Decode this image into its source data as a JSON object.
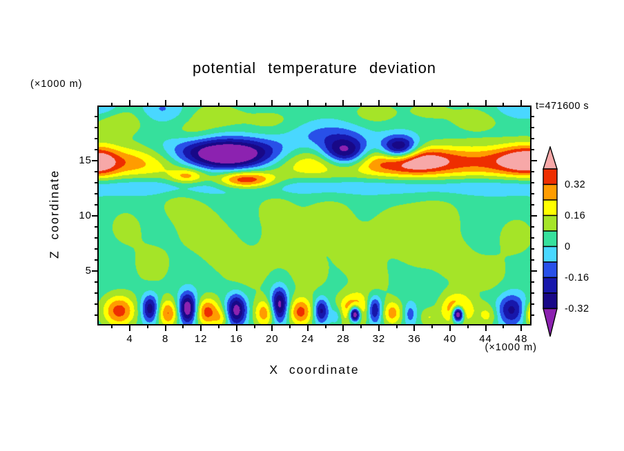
{
  "title": "potential temperature deviation",
  "timestamp_label": "t=471600 s",
  "y_unit_label": "(×1000 m)",
  "x_unit_label": "(×1000 m)",
  "x_axis_label": "X coordinate",
  "y_axis_label": "Z coordinate",
  "chart_data": {
    "type": "filled_contour",
    "title": "potential temperature deviation",
    "time_label": "t=471600 s",
    "x": {
      "label": "X coordinate",
      "unit": "(×1000 m)",
      "range": [
        0.5,
        49.0
      ],
      "major_ticks": [
        4,
        8,
        12,
        16,
        20,
        24,
        28,
        32,
        36,
        40,
        44,
        48
      ],
      "minor_tick_step": 2
    },
    "z": {
      "label": "Z coordinate",
      "unit": "(×1000 m)",
      "range": [
        0.2,
        19.9
      ],
      "major_ticks": [
        5,
        10,
        15
      ],
      "minor_tick_step": 1
    },
    "levels": {
      "thresholds": [
        0.4,
        0.32,
        0.24,
        0.16,
        0.08,
        0,
        -0.08,
        -0.16,
        -0.24,
        -0.32
      ],
      "colors": [
        "#F7A8A8",
        "#EE2E00",
        "#FF9C00",
        "#FFFF00",
        "#A5E428",
        "#36E09C",
        "#49D7FF",
        "#2850E8",
        "#1717AB",
        "#180887",
        "#8C22B0"
      ],
      "color_names": [
        "pink",
        "red",
        "orange",
        "yellow",
        "green-yellow",
        "green",
        "cyan",
        "blue",
        "navy",
        "dark-navy",
        "purple"
      ]
    },
    "colorbar": {
      "labels": [
        {
          "text": "0.32",
          "boundary": 1
        },
        {
          "text": "0.16",
          "boundary": 3
        },
        {
          "text": "0",
          "boundary": 5
        },
        {
          "text": "-0.16",
          "boundary": 7
        },
        {
          "text": "-0.32",
          "boundary": 9
        }
      ]
    },
    "field_model": "sum_of_gaussians",
    "background_value": 0.03,
    "field_features": [
      {
        "x": 24.75,
        "z": 14.9,
        "sx": 400,
        "sz": 1.05,
        "a": 0.3
      },
      {
        "x": 24.75,
        "z": 12.7,
        "sx": 400,
        "sz": 0.62,
        "a": -0.11
      },
      {
        "x": 0.5,
        "z": 14.9,
        "sx": 1.4,
        "sz": 1.0,
        "a": 0.22
      },
      {
        "x": 36,
        "z": 15.0,
        "sx": 2.6,
        "sz": 0.85,
        "a": 0.22
      },
      {
        "x": 48.6,
        "z": 15.1,
        "sx": 2.2,
        "sz": 1.0,
        "a": 0.24
      },
      {
        "x": 17,
        "z": 13.25,
        "sx": 2.3,
        "sz": 0.55,
        "a": 0.4
      },
      {
        "x": 10.5,
        "z": 13.6,
        "sx": 1.4,
        "sz": 0.5,
        "a": 0.22
      },
      {
        "x": 15,
        "z": 15.4,
        "sx": 4.6,
        "sz": 1.05,
        "a": -0.78
      },
      {
        "x": 28.2,
        "z": 15.7,
        "sx": 1.9,
        "sz": 0.95,
        "a": -0.52
      },
      {
        "x": 34.3,
        "z": 16.1,
        "sx": 1.5,
        "sz": 0.8,
        "a": -0.5
      },
      {
        "x": 2.5,
        "z": 18.6,
        "sx": 2.2,
        "sz": 1.0,
        "a": 0.13
      },
      {
        "x": 0.8,
        "z": 19.9,
        "sx": 1.6,
        "sz": 0.8,
        "a": -0.14
      },
      {
        "x": 7.6,
        "z": 19.7,
        "sx": 1.7,
        "sz": 0.8,
        "a": -0.12
      },
      {
        "x": 13.5,
        "z": 19.0,
        "sx": 2.2,
        "sz": 0.9,
        "a": 0.1
      },
      {
        "x": 20,
        "z": 18.4,
        "sx": 2.6,
        "sz": 1.0,
        "a": 0.08
      },
      {
        "x": 25.8,
        "z": 17.4,
        "sx": 3.2,
        "sz": 0.9,
        "a": -0.13
      },
      {
        "x": 31.5,
        "z": 19.3,
        "sx": 2.0,
        "sz": 0.8,
        "a": 0.09
      },
      {
        "x": 43,
        "z": 18.8,
        "sx": 2.4,
        "sz": 0.9,
        "a": 0.09
      },
      {
        "x": 47.5,
        "z": 19.8,
        "sx": 2.0,
        "sz": 0.7,
        "a": -0.11
      },
      {
        "x": 11,
        "z": 17.6,
        "sx": 1.8,
        "sz": 0.7,
        "a": 0.08
      },
      {
        "x": 37.5,
        "z": 19.6,
        "sx": 1.8,
        "sz": 0.7,
        "a": 0.07
      },
      {
        "x": 6.5,
        "z": 5.5,
        "sx": 1.8,
        "sz": 1.6,
        "a": 0.08
      },
      {
        "x": 12,
        "z": 8.8,
        "sx": 2.2,
        "sz": 1.8,
        "a": 0.085
      },
      {
        "x": 17,
        "z": 4.8,
        "sx": 2.0,
        "sz": 1.5,
        "a": 0.08
      },
      {
        "x": 21.5,
        "z": 7.6,
        "sx": 2.4,
        "sz": 1.9,
        "a": 0.08
      },
      {
        "x": 20.3,
        "z": 10.8,
        "sx": 1.6,
        "sz": 1.2,
        "a": 0.075
      },
      {
        "x": 26.5,
        "z": 9.8,
        "sx": 2.2,
        "sz": 1.7,
        "a": 0.085
      },
      {
        "x": 24.3,
        "z": 4.4,
        "sx": 1.6,
        "sz": 1.3,
        "a": 0.075
      },
      {
        "x": 29.5,
        "z": 6.3,
        "sx": 1.9,
        "sz": 1.6,
        "a": 0.08
      },
      {
        "x": 33.8,
        "z": 8.8,
        "sx": 2.2,
        "sz": 1.8,
        "a": 0.08
      },
      {
        "x": 31.5,
        "z": 3.9,
        "sx": 1.5,
        "sz": 1.2,
        "a": 0.075
      },
      {
        "x": 38.5,
        "z": 9.8,
        "sx": 2.4,
        "sz": 1.8,
        "a": 0.085
      },
      {
        "x": 40.5,
        "z": 5.8,
        "sx": 1.9,
        "sz": 1.5,
        "a": 0.08
      },
      {
        "x": 44.5,
        "z": 4.6,
        "sx": 1.7,
        "sz": 1.4,
        "a": 0.075
      },
      {
        "x": 47.5,
        "z": 8.2,
        "sx": 1.8,
        "sz": 1.5,
        "a": 0.08
      },
      {
        "x": 9.5,
        "z": 11.2,
        "sx": 1.7,
        "sz": 1.2,
        "a": 0.07
      },
      {
        "x": 14.5,
        "z": 6.9,
        "sx": 1.5,
        "sz": 1.3,
        "a": 0.07
      },
      {
        "x": 36.5,
        "z": 6.8,
        "sx": 1.5,
        "sz": 1.2,
        "a": 0.07
      },
      {
        "x": 3.5,
        "z": 9.0,
        "sx": 1.6,
        "sz": 1.4,
        "a": 0.075
      },
      {
        "x": 2.8,
        "z": 1.4,
        "sx": 1.3,
        "sz": 1.0,
        "a": 0.33
      },
      {
        "x": 6.3,
        "z": 1.6,
        "sx": 0.7,
        "sz": 0.9,
        "a": -0.34
      },
      {
        "x": 8.3,
        "z": 1.2,
        "sx": 0.9,
        "sz": 0.9,
        "a": 0.3
      },
      {
        "x": 10.5,
        "z": 1.6,
        "sx": 0.75,
        "sz": 1.0,
        "a": -0.46
      },
      {
        "x": 12.7,
        "z": 1.3,
        "sx": 1.0,
        "sz": 0.9,
        "a": 0.33
      },
      {
        "x": 14.3,
        "z": 0.7,
        "sx": 0.55,
        "sz": 0.6,
        "a": 0.14
      },
      {
        "x": 16.0,
        "z": 1.5,
        "sx": 0.8,
        "sz": 1.0,
        "a": -0.4
      },
      {
        "x": 19.2,
        "z": 1.2,
        "sx": 0.9,
        "sz": 0.9,
        "a": 0.27
      },
      {
        "x": 20.8,
        "z": 1.9,
        "sx": 0.7,
        "sz": 1.1,
        "a": -0.42
      },
      {
        "x": 23.2,
        "z": 1.3,
        "sx": 1.0,
        "sz": 0.9,
        "a": 0.32
      },
      {
        "x": 25.5,
        "z": 1.4,
        "sx": 0.6,
        "sz": 0.8,
        "a": -0.31
      },
      {
        "x": 27.3,
        "z": 1.0,
        "sx": 0.5,
        "sz": 0.6,
        "a": -0.13
      },
      {
        "x": 29.2,
        "z": 1.5,
        "sx": 1.25,
        "sz": 1.0,
        "a": 0.33
      },
      {
        "x": 29.3,
        "z": 1.1,
        "sx": 0.45,
        "sz": 0.5,
        "a": -0.72
      },
      {
        "x": 31.5,
        "z": 1.5,
        "sx": 0.6,
        "sz": 0.9,
        "a": -0.33
      },
      {
        "x": 33.5,
        "z": 1.2,
        "sx": 0.8,
        "sz": 0.8,
        "a": 0.25
      },
      {
        "x": 35.5,
        "z": 1.1,
        "sx": 0.5,
        "sz": 0.7,
        "a": -0.16
      },
      {
        "x": 37.6,
        "z": 0.8,
        "sx": 0.7,
        "sz": 0.6,
        "a": 0.12
      },
      {
        "x": 40.8,
        "z": 1.5,
        "sx": 1.25,
        "sz": 1.0,
        "a": 0.33
      },
      {
        "x": 40.9,
        "z": 1.1,
        "sx": 0.45,
        "sz": 0.5,
        "a": -0.72
      },
      {
        "x": 44.2,
        "z": 1.0,
        "sx": 0.8,
        "sz": 0.7,
        "a": 0.15
      },
      {
        "x": 46.9,
        "z": 1.5,
        "sx": 1.1,
        "sz": 1.0,
        "a": -0.29
      },
      {
        "x": 49.3,
        "z": 1.1,
        "sx": 0.7,
        "sz": 0.8,
        "a": 0.26
      }
    ]
  }
}
